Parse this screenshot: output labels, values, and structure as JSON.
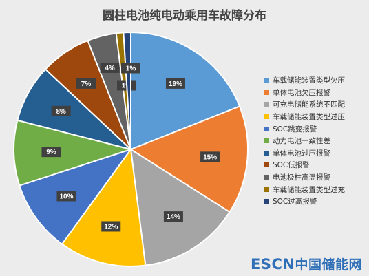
{
  "chart_data": {
    "type": "pie",
    "title": "圆柱电池纯电动乘用车故障分布",
    "categories": [
      "车载储能装置类型欠压",
      "单体电池欠压报警",
      "可充电储能系统不匹配",
      "车载储能装置类型过压",
      "SOC跳变报警",
      "动力电池一致性差",
      "单体电池过压报警",
      "SOC低报警",
      "电池极柱高温报警",
      "车载储能装置类型过充",
      "SOC过高报警"
    ],
    "values": [
      19,
      15,
      14,
      12,
      10,
      9,
      8,
      7,
      4,
      1,
      1
    ],
    "labels": [
      "19%",
      "15%",
      "14%",
      "12%",
      "10%",
      "9%",
      "8%",
      "7%",
      "4%",
      "1%",
      "1%"
    ],
    "colors": [
      "#5b9bd5",
      "#ed7d31",
      "#a5a5a5",
      "#ffc000",
      "#4472c4",
      "#70ad47",
      "#255e91",
      "#9e480e",
      "#636363",
      "#997300",
      "#264478"
    ],
    "legend_position": "right"
  },
  "watermark": {
    "brand": "ESCN",
    "site": "中国储能网"
  }
}
